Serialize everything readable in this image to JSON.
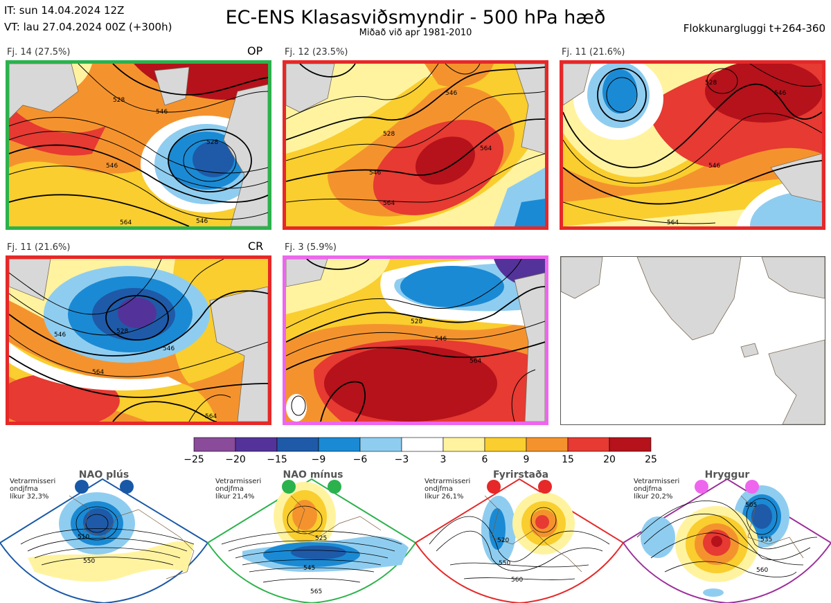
{
  "header": {
    "it_line": "IT: sun 14.04.2024 12Z",
    "vt_line": "VT: lau 27.04.2024 00Z  (+300h)",
    "title": "EC-ENS Klasasviðsmyndir - 500 hPa hæð",
    "subtitle": "Miðað við apr 1981-2010",
    "window": "Flokkunargluggi t+264-360"
  },
  "panels": [
    {
      "label": "Fj. 14 (27.5%)",
      "tag": "OP",
      "border": "#2bb24c",
      "contours": [
        "528",
        "528",
        "546",
        "546",
        "546",
        "564"
      ]
    },
    {
      "label": "Fj. 12 (23.5%)",
      "tag": "",
      "border": "#e62828",
      "contours": [
        "528",
        "546",
        "546",
        "564",
        "564"
      ]
    },
    {
      "label": "Fj. 11 (21.6%)",
      "tag": "",
      "border": "#e62828",
      "contours": [
        "528",
        "546",
        "546",
        "564"
      ]
    },
    {
      "label": "Fj. 11 (21.6%)",
      "tag": "CR",
      "border": "#e62828",
      "contours": [
        "528",
        "546",
        "546",
        "564",
        "564"
      ]
    },
    {
      "label": "Fj. 3 (5.9%)",
      "tag": "",
      "border": "#ee66ee",
      "contours": [
        "528",
        "546",
        "564"
      ]
    }
  ],
  "colorbar": {
    "colors": [
      "#8a4b9a",
      "#533399",
      "#1e5aa8",
      "#1b8ad4",
      "#8fcdf0",
      "#ffffff",
      "#fff3a0",
      "#f9ce2e",
      "#f4932d",
      "#e63a32",
      "#b5121b"
    ],
    "labels": [
      "−25",
      "−20",
      "−15",
      "−9",
      "−6",
      "−3",
      "3",
      "6",
      "9",
      "15",
      "20",
      "25"
    ]
  },
  "regimes": [
    {
      "name": "NAO plús",
      "info": [
        "Vetrarmisseri",
        "ondjfma",
        "líkur 32,3%"
      ],
      "color": "#1958a7",
      "contours": [
        "510",
        "550"
      ]
    },
    {
      "name": "NAO mínus",
      "info": [
        "Vetrarmisseri",
        "ondjfma",
        "líkur 21,4%"
      ],
      "color": "#2bb24c",
      "contours": [
        "525",
        "545",
        "565"
      ]
    },
    {
      "name": "Fyrirstaða",
      "info": [
        "Vetrarmisseri",
        "ondjfma",
        "líkur 26,1%"
      ],
      "color": "#e62828",
      "contours": [
        "520",
        "550",
        "560"
      ]
    },
    {
      "name": "Hryggur",
      "info": [
        "Vetrarmisseri",
        "ondjfma",
        "líkur 20,2%"
      ],
      "color": "#9b2f9b",
      "contours": [
        "505",
        "535",
        "560"
      ]
    }
  ],
  "chart_data": {
    "type": "heatmap",
    "title": "EC-ENS Klasasviðsmyndir - 500 hPa hæð",
    "field": "500 hPa height anomaly",
    "colorbar_bins": [
      -25,
      -20,
      -15,
      -9,
      -6,
      -3,
      3,
      6,
      9,
      15,
      20,
      25
    ],
    "clusters": [
      {
        "cluster": "Fj. 14",
        "probability_pct": 27.5,
        "tag": "OP"
      },
      {
        "cluster": "Fj. 12",
        "probability_pct": 23.5
      },
      {
        "cluster": "Fj. 11",
        "probability_pct": 21.6
      },
      {
        "cluster": "Fj. 11",
        "probability_pct": 21.6,
        "tag": "CR"
      },
      {
        "cluster": "Fj. 3",
        "probability_pct": 5.9
      }
    ],
    "regimes": [
      {
        "name": "NAO plús",
        "probability_pct": 32.3
      },
      {
        "name": "NAO mínus",
        "probability_pct": 21.4
      },
      {
        "name": "Fyrirstaða",
        "probability_pct": 26.1
      },
      {
        "name": "Hryggur",
        "probability_pct": 20.2
      }
    ]
  }
}
